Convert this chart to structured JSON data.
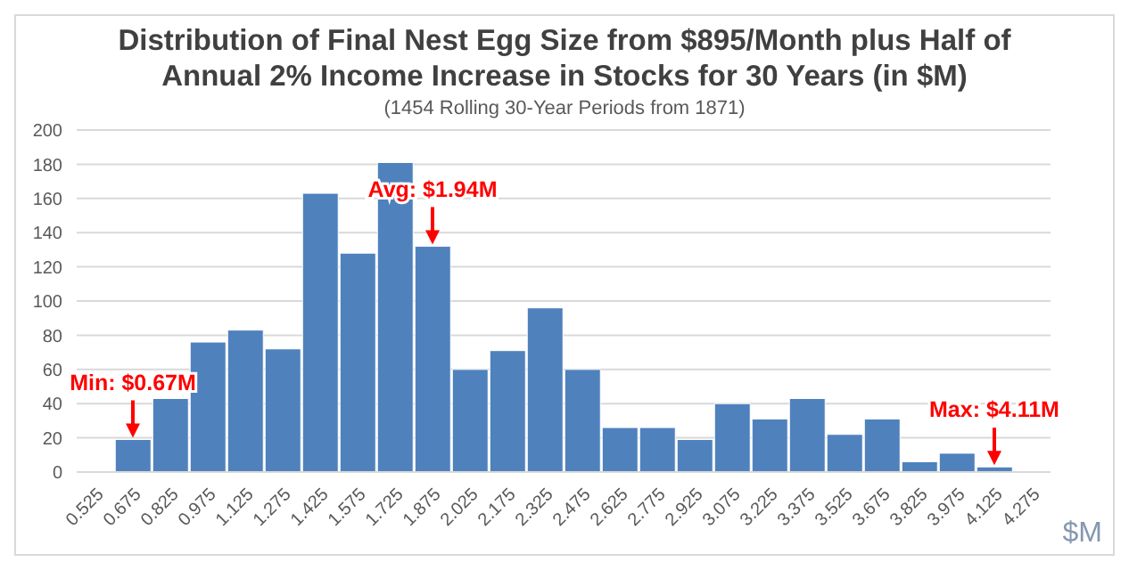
{
  "chart_data": {
    "type": "bar",
    "title": "Distribution of Final Nest Egg Size from $895/Month plus Half of Annual 2% Income Increase in Stocks for 30 Years (in $M)",
    "subtitle": "(1454 Rolling 30-Year Periods from 1871)",
    "xlabel": "$M",
    "categories": [
      "0.525",
      "0.675",
      "0.825",
      "0.975",
      "1.125",
      "1.275",
      "1.425",
      "1.575",
      "1.725",
      "1.875",
      "2.025",
      "2.175",
      "2.325",
      "2.475",
      "2.625",
      "2.775",
      "2.925",
      "3.075",
      "3.225",
      "3.375",
      "3.525",
      "3.675",
      "3.825",
      "3.975",
      "4.125",
      "4.275"
    ],
    "values": [
      0,
      19,
      43,
      76,
      83,
      72,
      163,
      128,
      181,
      132,
      60,
      71,
      96,
      60,
      26,
      26,
      19,
      40,
      31,
      43,
      22,
      31,
      6,
      11,
      3,
      0
    ],
    "color": "#4f81bd",
    "ylim": [
      0,
      200
    ],
    "yticks": [
      0,
      20,
      40,
      60,
      80,
      100,
      120,
      140,
      160,
      180,
      200
    ],
    "grid": "y",
    "annotations": [
      {
        "text": "Min: $0.67M",
        "x": "0.675",
        "y": 19
      },
      {
        "text": "Avg: $1.94M",
        "x": "1.875",
        "y": 132
      },
      {
        "text": "Max: $4.11M",
        "x": "4.125",
        "y": 3
      }
    ]
  }
}
